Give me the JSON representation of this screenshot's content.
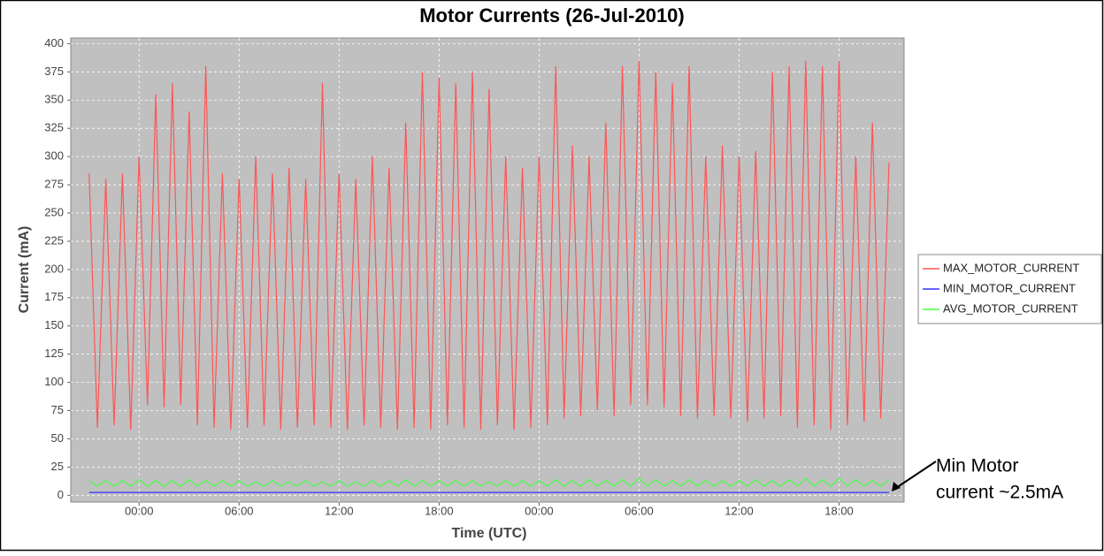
{
  "chart_data": {
    "type": "line",
    "title": "Motor Currents (26-Jul-2010)",
    "x_label": "Time (UTC)",
    "y_label": "Current (mA)",
    "xlim": [
      -4.1,
      45.9
    ],
    "ylim": [
      -6,
      405
    ],
    "xticks": [
      {
        "value": 0,
        "label": "00:00"
      },
      {
        "value": 6,
        "label": "06:00"
      },
      {
        "value": 12,
        "label": "12:00"
      },
      {
        "value": 18,
        "label": "18:00"
      },
      {
        "value": 24,
        "label": "00:00"
      },
      {
        "value": 30,
        "label": "06:00"
      },
      {
        "value": 36,
        "label": "12:00"
      },
      {
        "value": 42,
        "label": "18:00"
      }
    ],
    "yticks": [
      0,
      25,
      50,
      75,
      100,
      125,
      150,
      175,
      200,
      225,
      250,
      275,
      300,
      325,
      350,
      375,
      400
    ],
    "grid": true,
    "legend": "right",
    "x": [
      -3,
      -2.5,
      -2,
      -1.5,
      -1,
      -0.5,
      0,
      0.5,
      1,
      1.5,
      2,
      2.5,
      3,
      3.5,
      4,
      4.5,
      5,
      5.5,
      6,
      6.5,
      7,
      7.5,
      8,
      8.5,
      9,
      9.5,
      10,
      10.5,
      11,
      11.5,
      12,
      12.5,
      13,
      13.5,
      14,
      14.5,
      15,
      15.5,
      16,
      16.5,
      17,
      17.5,
      18,
      18.5,
      19,
      19.5,
      20,
      20.5,
      21,
      21.5,
      22,
      22.5,
      23,
      23.5,
      24,
      24.5,
      25,
      25.5,
      26,
      26.5,
      27,
      27.5,
      28,
      28.5,
      29,
      29.5,
      30,
      30.5,
      31,
      31.5,
      32,
      32.5,
      33,
      33.5,
      34,
      34.5,
      35,
      35.5,
      36,
      36.5,
      37,
      37.5,
      38,
      38.5,
      39,
      39.5,
      40,
      40.5,
      41,
      41.5,
      42,
      42.5,
      43,
      43.5,
      44,
      44.5,
      45
    ],
    "series": [
      {
        "name": "MAX_MOTOR_CURRENT",
        "color": "#ff5555",
        "values": [
          285,
          60,
          280,
          62,
          285,
          58,
          300,
          80,
          355,
          78,
          365,
          80,
          340,
          62,
          380,
          60,
          285,
          58,
          280,
          60,
          300,
          62,
          285,
          58,
          290,
          60,
          280,
          62,
          365,
          60,
          285,
          58,
          280,
          62,
          300,
          60,
          290,
          58,
          330,
          60,
          375,
          58,
          370,
          62,
          365,
          60,
          375,
          58,
          360,
          62,
          300,
          58,
          290,
          60,
          300,
          62,
          380,
          68,
          310,
          70,
          300,
          75,
          330,
          70,
          380,
          80,
          385,
          80,
          375,
          78,
          365,
          70,
          380,
          68,
          300,
          70,
          310,
          68,
          300,
          65,
          305,
          68,
          375,
          70,
          380,
          60,
          385,
          62,
          380,
          58,
          385,
          62,
          300,
          65,
          330,
          68,
          295
        ]
      },
      {
        "name": "MIN_MOTOR_CURRENT",
        "color": "#3333ff",
        "values": [
          2.5,
          2.5,
          2.5,
          2.5,
          2.5,
          2.5,
          2.5,
          2.5,
          2.5,
          2.5,
          2.5,
          2.5,
          2.5,
          2.5,
          2.5,
          2.5,
          2.5,
          2.5,
          2.5,
          2.5,
          2.5,
          2.5,
          2.5,
          2.5,
          2.5,
          2.5,
          2.5,
          2.5,
          2.5,
          2.5,
          2.5,
          2.5,
          2.5,
          2.5,
          2.5,
          2.5,
          2.5,
          2.5,
          2.5,
          2.5,
          2.5,
          2.5,
          2.5,
          2.5,
          2.5,
          2.5,
          2.5,
          2.5,
          2.5,
          2.5,
          2.5,
          2.5,
          2.5,
          2.5,
          2.5,
          2.5,
          2.5,
          2.5,
          2.5,
          2.5,
          2.5,
          2.5,
          2.5,
          2.5,
          2.5,
          2.5,
          2.5,
          2.5,
          2.5,
          2.5,
          2.5,
          2.5,
          2.5,
          2.5,
          2.5,
          2.5,
          2.5,
          2.5,
          2.5,
          2.5,
          2.5,
          2.5,
          2.5,
          2.5,
          2.5,
          2.5,
          2.5,
          2.5,
          2.5,
          2.5,
          2.5,
          2.5,
          2.5,
          2.5,
          2.5,
          2.5,
          2.5
        ]
      },
      {
        "name": "AVG_MOTOR_CURRENT",
        "color": "#44ff44",
        "values": [
          13,
          8,
          13,
          8,
          13,
          8,
          14,
          8,
          13,
          8,
          13,
          8,
          14,
          8,
          13,
          8,
          13,
          8,
          13,
          8,
          12,
          8,
          13,
          8,
          12,
          8,
          13,
          8,
          12,
          8,
          13,
          8,
          12,
          8,
          13,
          8,
          13,
          8,
          14,
          8,
          13,
          8,
          13,
          8,
          13,
          8,
          13,
          8,
          12,
          8,
          13,
          8,
          13,
          8,
          13,
          8,
          14,
          8,
          13,
          8,
          14,
          8,
          13,
          8,
          14,
          8,
          15,
          8,
          14,
          8,
          13,
          8,
          14,
          8,
          13,
          8,
          13,
          8,
          13,
          8,
          14,
          8,
          13,
          8,
          14,
          8,
          15,
          8,
          14,
          8,
          15,
          8,
          14,
          8,
          13,
          8,
          14
        ]
      }
    ],
    "annotation": [
      "Min Motor",
      "current ~2.5mA"
    ]
  }
}
